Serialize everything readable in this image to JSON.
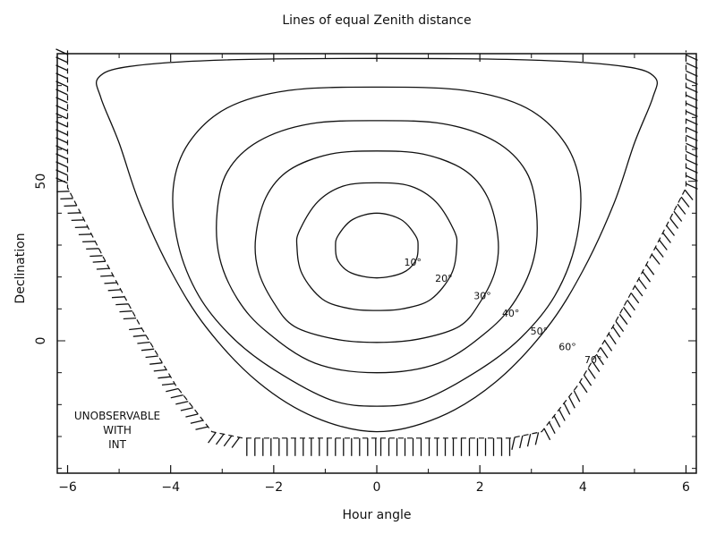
{
  "chart_data": {
    "type": "line",
    "title": "Lines of equal Zenith distance",
    "xlabel": "Hour angle",
    "ylabel": "Declination",
    "xlim": [
      -6.2,
      6.2
    ],
    "ylim": [
      -41.5,
      90
    ],
    "xticks": [
      -6,
      -4,
      -2,
      0,
      2,
      4,
      6
    ],
    "yticks": [
      0,
      50
    ],
    "contours": [
      {
        "label": "10°",
        "label_at": [
          0.7,
          23.5
        ],
        "points": [
          [
            0,
            40
          ],
          [
            0.47,
            38
          ],
          [
            0.75,
            33
          ],
          [
            0.8,
            29.5
          ],
          [
            0.75,
            25
          ],
          [
            0.5,
            21.3
          ],
          [
            0,
            19.7
          ],
          [
            -0.5,
            21.3
          ],
          [
            -0.75,
            25
          ],
          [
            -0.8,
            29.5
          ],
          [
            -0.75,
            33
          ],
          [
            -0.47,
            38
          ],
          [
            0,
            40
          ]
        ]
      },
      {
        "label": "20°",
        "label_at": [
          1.3,
          18.5
        ],
        "points": [
          [
            0,
            49.5
          ],
          [
            0.65,
            48.5
          ],
          [
            1.15,
            43.5
          ],
          [
            1.5,
            34.5
          ],
          [
            1.55,
            29.5
          ],
          [
            1.45,
            21
          ],
          [
            1.05,
            13
          ],
          [
            0.5,
            10
          ],
          [
            0,
            9.5
          ],
          [
            -0.5,
            10
          ],
          [
            -1.05,
            13
          ],
          [
            -1.45,
            21
          ],
          [
            -1.55,
            29.5
          ],
          [
            -1.5,
            34.5
          ],
          [
            -1.15,
            43.5
          ],
          [
            -0.65,
            48.5
          ],
          [
            0,
            49.5
          ]
        ]
      },
      {
        "label": "30°",
        "label_at": [
          2.05,
          13
        ],
        "points": [
          [
            0,
            59.5
          ],
          [
            0.9,
            58.5
          ],
          [
            1.7,
            53.5
          ],
          [
            2.15,
            45
          ],
          [
            2.35,
            32.5
          ],
          [
            2.3,
            22
          ],
          [
            2.0,
            12
          ],
          [
            1.6,
            4.5
          ],
          [
            0.8,
            0.5
          ],
          [
            0,
            -0.5
          ],
          [
            -0.8,
            0.5
          ],
          [
            -1.6,
            4.5
          ],
          [
            -2.0,
            12
          ],
          [
            -2.3,
            22
          ],
          [
            -2.35,
            32.5
          ],
          [
            -2.15,
            45
          ],
          [
            -1.7,
            53.5
          ],
          [
            -0.9,
            58.5
          ],
          [
            0,
            59.5
          ]
        ]
      },
      {
        "label": "40°",
        "label_at": [
          2.6,
          7.5
        ],
        "points": [
          [
            0,
            69
          ],
          [
            1.3,
            68
          ],
          [
            2.3,
            62.5
          ],
          [
            2.9,
            53
          ],
          [
            3.1,
            40
          ],
          [
            3.05,
            26
          ],
          [
            2.7,
            13
          ],
          [
            2.15,
            3
          ],
          [
            1.2,
            -7
          ],
          [
            0,
            -10
          ],
          [
            -1.2,
            -7
          ],
          [
            -2.15,
            3
          ],
          [
            -2.7,
            13
          ],
          [
            -3.05,
            26
          ],
          [
            -3.1,
            40
          ],
          [
            -2.9,
            53
          ],
          [
            -2.3,
            62.5
          ],
          [
            -1.3,
            68
          ],
          [
            0,
            69
          ]
        ]
      },
      {
        "label": "50°",
        "label_at": [
          3.15,
          2
        ],
        "points": [
          [
            0,
            79.5
          ],
          [
            1.7,
            78.5
          ],
          [
            2.9,
            73
          ],
          [
            3.65,
            62
          ],
          [
            3.95,
            48
          ],
          [
            3.85,
            30
          ],
          [
            3.45,
            14
          ],
          [
            2.8,
            1
          ],
          [
            2.0,
            -9
          ],
          [
            0.9,
            -18.5
          ],
          [
            0,
            -20.5
          ],
          [
            -0.9,
            -18.5
          ],
          [
            -2.0,
            -9
          ],
          [
            -2.8,
            1
          ],
          [
            -3.45,
            14
          ],
          [
            -3.85,
            30
          ],
          [
            -3.95,
            48
          ],
          [
            -3.65,
            62
          ],
          [
            -2.9,
            73
          ],
          [
            -1.7,
            78.5
          ],
          [
            0,
            79.5
          ]
        ]
      },
      {
        "label": "60°",
        "label_at": [
          3.7,
          -3
        ],
        "points": [
          [
            0,
            88.5
          ],
          [
            3.0,
            88
          ],
          [
            4.8,
            86
          ],
          [
            5.4,
            82.5
          ],
          [
            5.35,
            76
          ],
          [
            5.0,
            62
          ],
          [
            4.6,
            43
          ],
          [
            4.0,
            22
          ],
          [
            3.3,
            4
          ],
          [
            2.3,
            -13
          ],
          [
            1.2,
            -24
          ],
          [
            0,
            -28.5
          ],
          [
            -1.2,
            -24
          ],
          [
            -2.3,
            -13
          ],
          [
            -3.3,
            4
          ],
          [
            -4.0,
            22
          ],
          [
            -4.6,
            43
          ],
          [
            -5.0,
            62
          ],
          [
            -5.35,
            76
          ],
          [
            -5.4,
            82.5
          ],
          [
            -4.8,
            86
          ],
          [
            -3.0,
            88
          ],
          [
            0,
            88.5
          ]
        ]
      }
    ],
    "boundary_label": {
      "label": "70°",
      "label_at": [
        4.2,
        -7
      ],
      "points": [
        [
          -6.0,
          91
        ],
        [
          -6.0,
          48
        ],
        [
          -5.3,
          26
        ],
        [
          -4.6,
          5
        ],
        [
          -3.9,
          -14
        ],
        [
          -3.2,
          -28.5
        ],
        [
          -2.6,
          -30.5
        ],
        [
          0,
          -30.5
        ],
        [
          2.6,
          -30.5
        ],
        [
          3.2,
          -28.5
        ],
        [
          3.9,
          -14
        ],
        [
          4.6,
          5
        ],
        [
          5.3,
          26
        ],
        [
          6.0,
          48
        ],
        [
          6.0,
          91
        ]
      ]
    },
    "annotation": [
      "UNOBSERVABLE",
      "WITH",
      "INT"
    ]
  }
}
